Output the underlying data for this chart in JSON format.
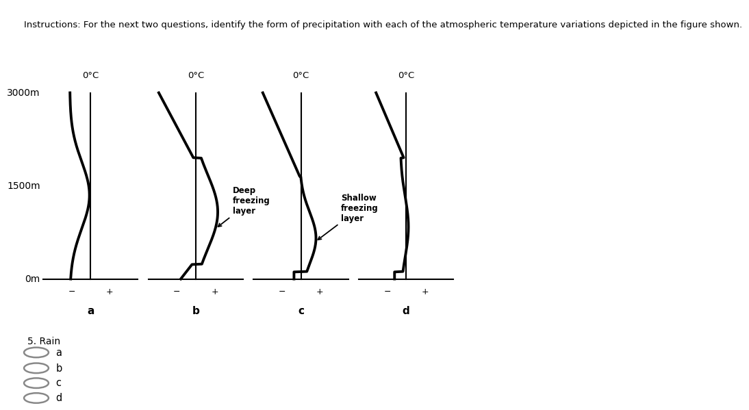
{
  "title": "Instructions: For the next two questions, identify the form of precipitation with each of the atmospheric temperature variations depicted in the figure shown.",
  "title_fontsize": 9.5,
  "background_color": "#ffffff",
  "text_color": "#000000",
  "ylabel_3000": "3000m",
  "ylabel_1500": "1500m",
  "ylabel_0": "0m",
  "zero_label": "0°C",
  "panels": [
    "a",
    "b",
    "c",
    "d"
  ],
  "label_deep": "Deep\nfreezing\nlayer",
  "label_shallow": "Shallow\nfreezing\nlayer",
  "question_label": "5. Rain",
  "radio_options": [
    "a",
    "b",
    "c",
    "d"
  ]
}
